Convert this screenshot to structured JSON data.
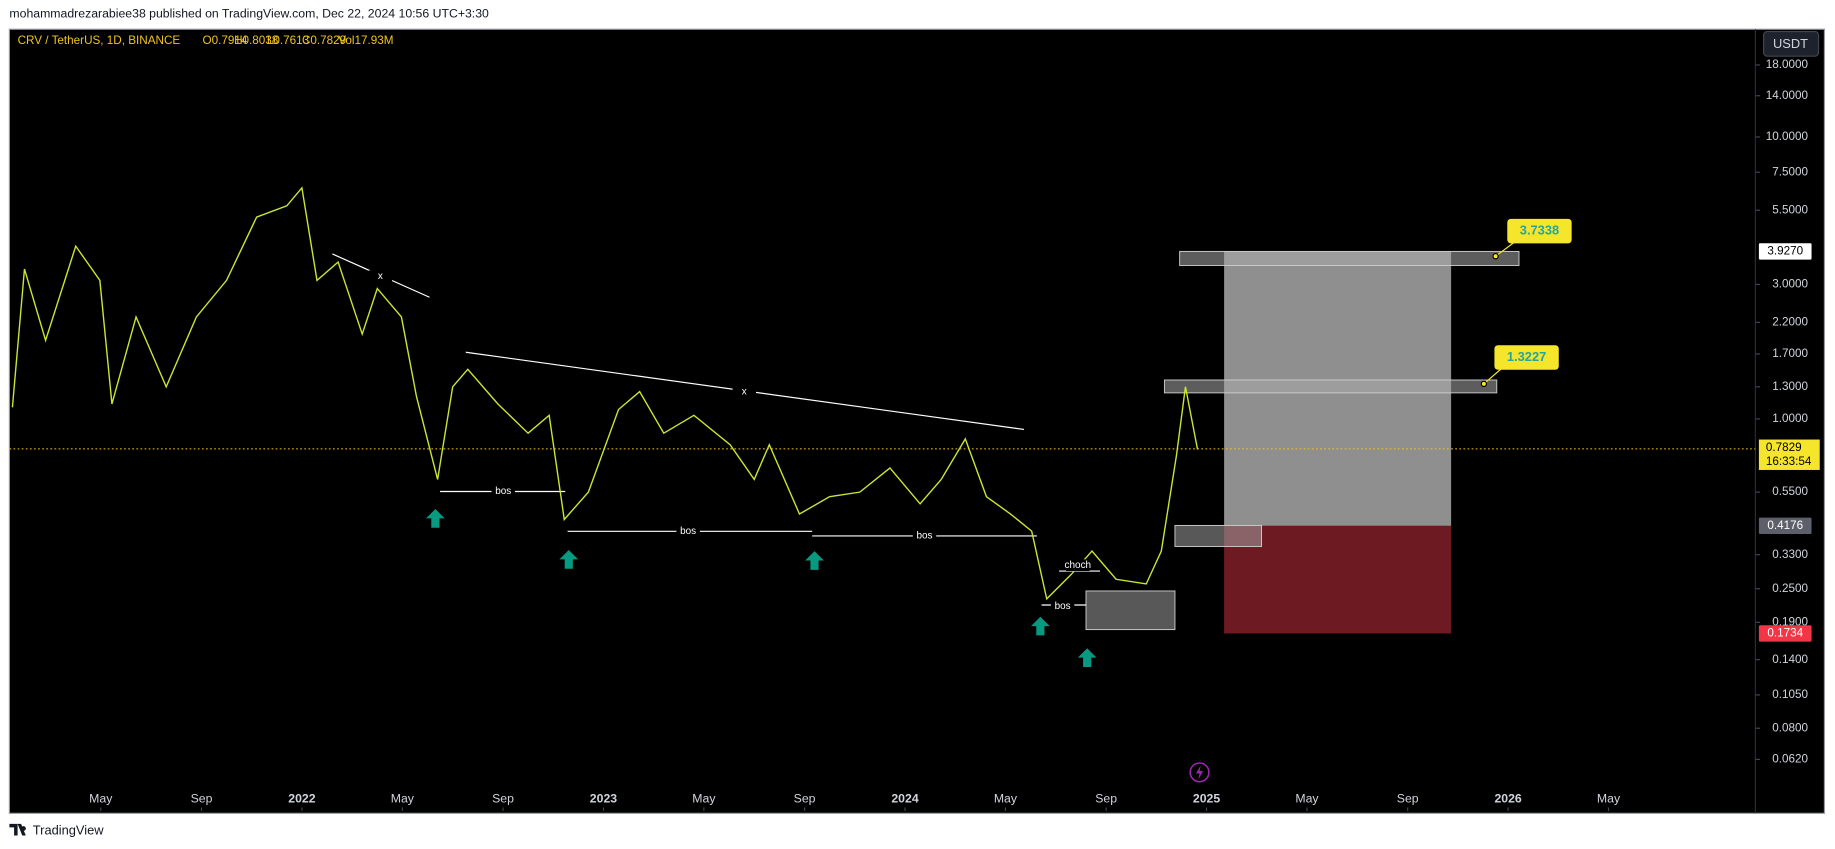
{
  "header": {
    "publisher": "mohammadrezarabiee38 published on TradingView.com, Dec 22, 2024 10:56 UTC+3:30"
  },
  "footer": {
    "brand": "TradingView"
  },
  "chart_data": {
    "type": "line",
    "symbol": "CRV / TetherUS, 1D, BINANCE",
    "ohlc": [
      "O0.7914",
      "H0.8038",
      "L0.7613",
      "C0.7829",
      "Vol17.93M"
    ],
    "currency": "USDT",
    "color": "#c8e632",
    "log_scale": true,
    "x": [
      2021.04,
      2021.08,
      2021.15,
      2021.25,
      2021.33,
      2021.37,
      2021.45,
      2021.55,
      2021.65,
      2021.75,
      2021.85,
      2021.95,
      2022.0,
      2022.05,
      2022.12,
      2022.2,
      2022.25,
      2022.33,
      2022.38,
      2022.45,
      2022.5,
      2022.55,
      2022.65,
      2022.75,
      2022.82,
      2022.87,
      2022.95,
      2023.05,
      2023.12,
      2023.2,
      2023.3,
      2023.42,
      2023.5,
      2023.55,
      2023.65,
      2023.75,
      2023.85,
      2023.95,
      2024.05,
      2024.12,
      2024.2,
      2024.27,
      2024.35,
      2024.42,
      2024.47,
      2024.55,
      2024.62,
      2024.7,
      2024.8,
      2024.85,
      2024.9,
      2024.93,
      2024.97
    ],
    "values": [
      1.1,
      3.4,
      1.9,
      4.1,
      3.1,
      1.13,
      2.3,
      1.3,
      2.3,
      3.1,
      5.2,
      5.7,
      6.6,
      3.1,
      3.6,
      2.0,
      2.9,
      2.3,
      1.2,
      0.61,
      1.3,
      1.5,
      1.13,
      0.89,
      1.03,
      0.44,
      0.55,
      1.08,
      1.25,
      0.89,
      1.03,
      0.81,
      0.61,
      0.81,
      0.46,
      0.53,
      0.55,
      0.67,
      0.5,
      0.61,
      0.85,
      0.53,
      0.46,
      0.4,
      0.23,
      0.28,
      0.34,
      0.27,
      0.26,
      0.34,
      0.74,
      1.3,
      0.78
    ],
    "xlim": [
      2021.03,
      2026.82
    ],
    "ylim": [
      0.0407,
      24.1
    ],
    "xticks": [
      {
        "value": 2021.333,
        "label": "May"
      },
      {
        "value": 2021.667,
        "label": "Sep"
      },
      2022,
      {
        "value": 2022.333,
        "label": "May"
      },
      {
        "value": 2022.667,
        "label": "Sep"
      },
      2023,
      {
        "value": 2023.333,
        "label": "May"
      },
      {
        "value": 2023.667,
        "label": "Sep"
      },
      2024,
      {
        "value": 2024.333,
        "label": "May"
      },
      {
        "value": 2024.667,
        "label": "Sep"
      },
      2025,
      {
        "value": 2025.333,
        "label": "May"
      },
      {
        "value": 2025.667,
        "label": "Sep"
      },
      2026,
      {
        "value": 2026.333,
        "label": "May"
      }
    ],
    "yticks": [
      {
        "value": 18,
        "label": "18.0000"
      },
      {
        "value": 14,
        "label": "14.0000"
      },
      {
        "value": 10,
        "label": "10.0000"
      },
      {
        "value": 7.5,
        "label": "7.5000"
      },
      {
        "value": 5.5,
        "label": "5.5000"
      },
      {
        "value": 3,
        "label": "3.0000"
      },
      {
        "value": 2.2,
        "label": "2.2000"
      },
      {
        "value": 1.7,
        "label": "1.7000"
      },
      {
        "value": 1.3,
        "label": "1.3000"
      },
      {
        "value": 1,
        "label": "1.0000"
      },
      {
        "value": 0.55,
        "label": "0.5500"
      },
      {
        "value": 0.33,
        "label": "0.3300"
      },
      {
        "value": 0.25,
        "label": "0.2500"
      },
      {
        "value": 0.19,
        "label": "0.1900"
      },
      {
        "value": 0.14,
        "label": "0.1400"
      },
      {
        "value": 0.105,
        "label": "0.1050"
      },
      {
        "value": 0.08,
        "label": "0.0800"
      },
      {
        "value": 0.062,
        "label": "0.0620"
      }
    ],
    "current_price": {
      "value": 0.7829,
      "label": "0.7829",
      "countdown": "16:33:54"
    },
    "price_levels": [
      {
        "value": 3.927,
        "label": "3.9270",
        "color": "#ffffff"
      },
      {
        "value": 0.4176,
        "label": "0.4176",
        "color": "#5d606b"
      },
      {
        "value": 0.1734,
        "label": "0.1734",
        "color": "#f23645"
      }
    ],
    "targets": [
      {
        "value": 3.7338,
        "label": "3.7338"
      },
      {
        "value": 1.3227,
        "label": "1.3227"
      }
    ],
    "annotations": [
      "bos",
      "bos",
      "bos",
      "bos",
      "x",
      "x",
      "choch"
    ]
  }
}
